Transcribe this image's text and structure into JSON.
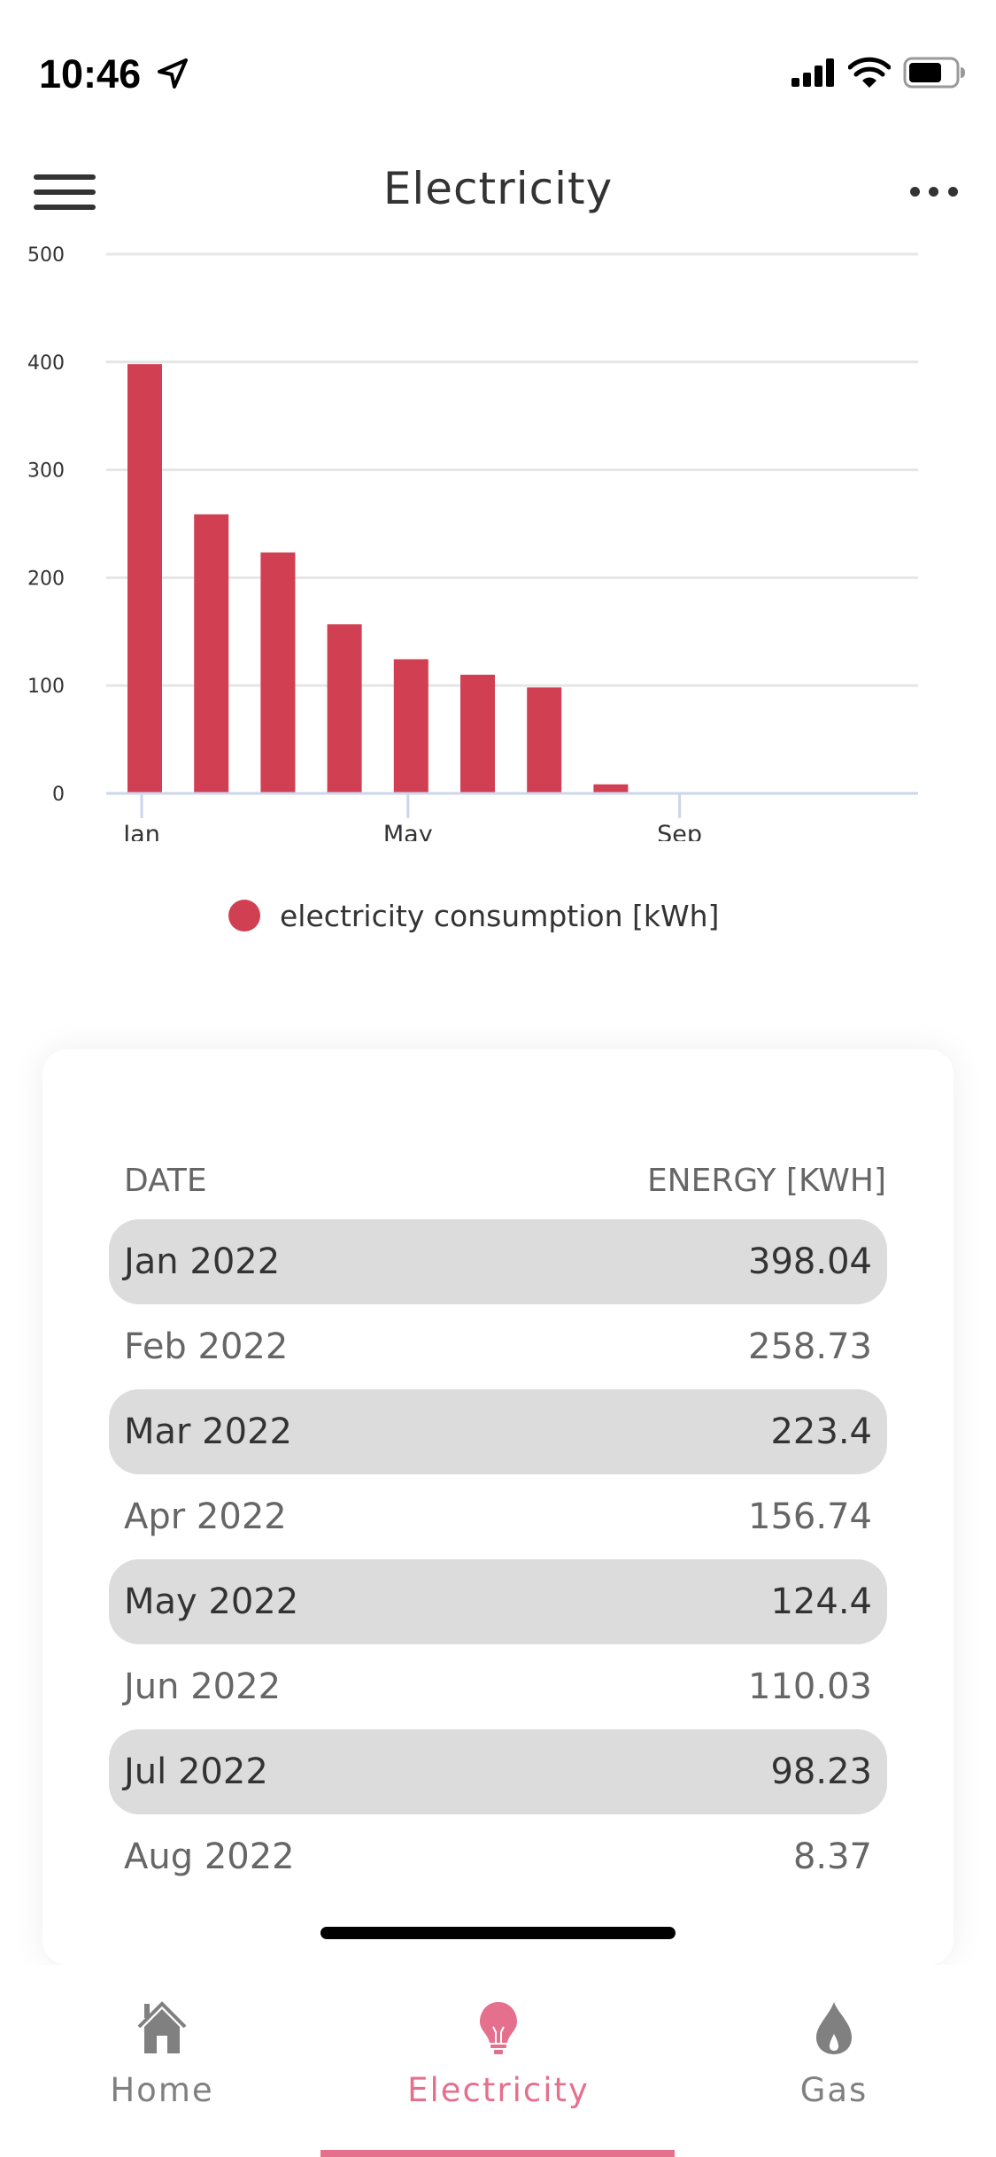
{
  "status_bar": {
    "time": "10:46",
    "location_icon": "location-arrow-icon",
    "signal_icon": "cellular-signal-icon",
    "wifi_icon": "wifi-icon",
    "battery_icon": "battery-icon"
  },
  "header": {
    "title": "Electricity",
    "menu_icon": "hamburger-menu-icon",
    "more_icon": "more-horizontal-icon"
  },
  "colors": {
    "bar": "#d13f53",
    "accent": "#e5708e",
    "nav_inactive": "#808080",
    "row_shade": "#dcdcdc"
  },
  "chart_data": {
    "type": "bar",
    "title": "",
    "xlabel": "",
    "ylabel": "",
    "categories": [
      "Jan 2022",
      "Feb 2022",
      "Mar 2022",
      "Apr 2022",
      "May 2022",
      "Jun 2022",
      "Jul 2022",
      "Aug 2022"
    ],
    "month_index": [
      0,
      1,
      2,
      3,
      4,
      5,
      6,
      7
    ],
    "series": [
      {
        "name": "electricity consumption [kWh]",
        "values": [
          398.04,
          258.73,
          223.4,
          156.74,
          124.4,
          110.03,
          98.23,
          8.37
        ]
      }
    ],
    "ylim": [
      0,
      500
    ],
    "y_ticks": [
      "0",
      "100",
      "200",
      "300",
      "400",
      "500"
    ],
    "y_tick_values": [
      0,
      100,
      200,
      300,
      400,
      500
    ],
    "x_ticks": [
      "Jan",
      "May",
      "Sep"
    ],
    "x_tick_month_index": [
      0,
      4,
      8
    ],
    "x_range_months": [
      0,
      12
    ],
    "grid": true,
    "legend": "bottom-center"
  },
  "legend": {
    "label": "electricity consumption [kWh]"
  },
  "table": {
    "headers": {
      "date": "DATE",
      "energy": "ENERGY [KWH]"
    },
    "rows": [
      {
        "date": "Jan 2022",
        "energy": "398.04"
      },
      {
        "date": "Feb 2022",
        "energy": "258.73"
      },
      {
        "date": "Mar 2022",
        "energy": "223.4"
      },
      {
        "date": "Apr 2022",
        "energy": "156.74"
      },
      {
        "date": "May 2022",
        "energy": "124.4"
      },
      {
        "date": "Jun 2022",
        "energy": "110.03"
      },
      {
        "date": "Jul 2022",
        "energy": "98.23"
      },
      {
        "date": "Aug 2022",
        "energy": "8.37"
      }
    ]
  },
  "bottom_nav": {
    "items": [
      {
        "label": "Home",
        "icon": "home-icon",
        "active": false
      },
      {
        "label": "Electricity",
        "icon": "lightbulb-icon",
        "active": true
      },
      {
        "label": "Gas",
        "icon": "flame-icon",
        "active": false
      }
    ]
  }
}
